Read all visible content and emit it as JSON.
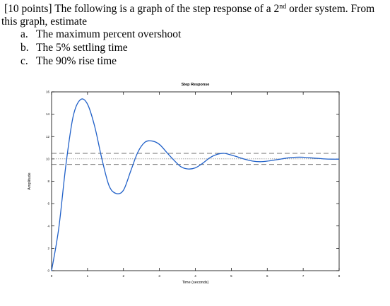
{
  "question": {
    "points": "[10 points]",
    "lead_1": " The following is a graph of the step response of a 2",
    "lead_sup": "nd",
    "lead_2": " order system. From",
    "line_2": "this graph, estimate",
    "items": [
      {
        "marker": "a.",
        "text": "The maximum percent overshoot"
      },
      {
        "marker": "b.",
        "text": "The 5% settling time"
      },
      {
        "marker": "c.",
        "text": "The 90% rise time"
      }
    ]
  },
  "chart_data": {
    "type": "line",
    "title": "Step Response",
    "xlabel": "Time (seconds)",
    "ylabel": "Amplitude",
    "xlim": [
      0,
      8
    ],
    "ylim": [
      0,
      16
    ],
    "x_ticks": [
      "0",
      "1",
      "2",
      "3",
      "4",
      "5",
      "6",
      "7",
      "8"
    ],
    "y_ticks": [
      "0",
      "2",
      "4",
      "6",
      "8",
      "10",
      "12",
      "14",
      "16"
    ],
    "grid": false,
    "reference_lines": [
      {
        "y": 10.5,
        "style": "dashed"
      },
      {
        "y": 10.0,
        "style": "dotted"
      },
      {
        "y": 9.5,
        "style": "dashed"
      }
    ],
    "series": [
      {
        "values": [
          [
            0.0,
            0.0
          ],
          [
            0.2,
            3.8
          ],
          [
            0.4,
            9.5
          ],
          [
            0.6,
            13.8
          ],
          [
            0.8,
            15.3
          ],
          [
            1.0,
            14.9
          ],
          [
            1.2,
            12.9
          ],
          [
            1.4,
            10.0
          ],
          [
            1.6,
            7.6
          ],
          [
            1.8,
            6.9
          ],
          [
            2.0,
            7.2
          ],
          [
            2.2,
            8.9
          ],
          [
            2.4,
            10.6
          ],
          [
            2.6,
            11.5
          ],
          [
            2.8,
            11.6
          ],
          [
            3.0,
            11.3
          ],
          [
            3.2,
            10.6
          ],
          [
            3.4,
            9.9
          ],
          [
            3.6,
            9.3
          ],
          [
            3.8,
            9.1
          ],
          [
            4.0,
            9.2
          ],
          [
            4.2,
            9.6
          ],
          [
            4.4,
            10.1
          ],
          [
            4.6,
            10.4
          ],
          [
            4.8,
            10.5
          ],
          [
            5.0,
            10.35
          ],
          [
            5.2,
            10.15
          ],
          [
            5.4,
            9.95
          ],
          [
            5.6,
            9.8
          ],
          [
            5.8,
            9.75
          ],
          [
            6.0,
            9.8
          ],
          [
            6.2,
            9.9
          ],
          [
            6.4,
            10.0
          ],
          [
            6.6,
            10.1
          ],
          [
            6.8,
            10.15
          ],
          [
            7.0,
            10.15
          ],
          [
            7.2,
            10.1
          ],
          [
            7.4,
            10.05
          ],
          [
            7.6,
            10.0
          ],
          [
            7.8,
            9.98
          ],
          [
            8.0,
            9.98
          ]
        ]
      }
    ]
  }
}
